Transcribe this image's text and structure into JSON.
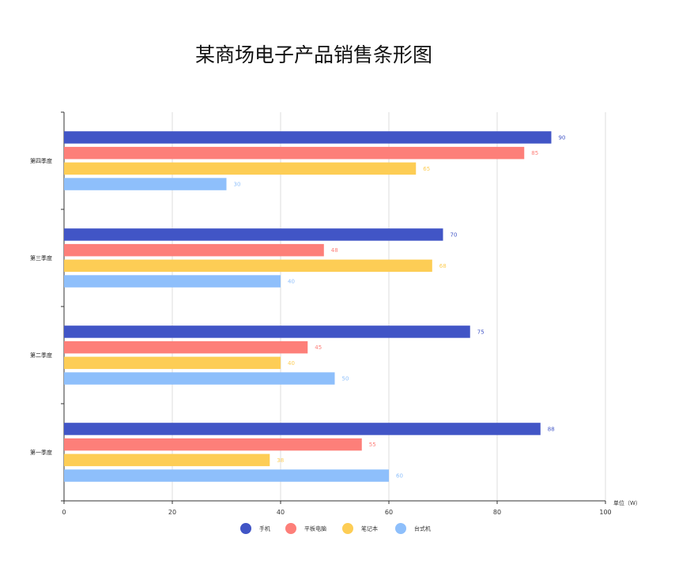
{
  "chart_data": {
    "type": "bar",
    "orientation": "horizontal",
    "title": "某商场电子产品销售条形图",
    "categories": [
      "第一季度",
      "第二季度",
      "第三季度",
      "第四季度"
    ],
    "series": [
      {
        "name": "手机",
        "color": "#4155c6",
        "values": [
          88,
          75,
          70,
          90
        ]
      },
      {
        "name": "平板电脑",
        "color": "#fd7f79",
        "values": [
          55,
          45,
          48,
          85
        ]
      },
      {
        "name": "笔记本",
        "color": "#fdcd55",
        "values": [
          38,
          40,
          68,
          65
        ]
      },
      {
        "name": "台式机",
        "color": "#8ebffb",
        "values": [
          60,
          50,
          40,
          30
        ]
      }
    ],
    "xlim": [
      0,
      100
    ],
    "xticks": [
      "0",
      "20",
      "40",
      "60",
      "80",
      "100"
    ],
    "unit_label": "单位（W）",
    "grid": true,
    "legend_position": "bottom",
    "data_labels": true
  }
}
